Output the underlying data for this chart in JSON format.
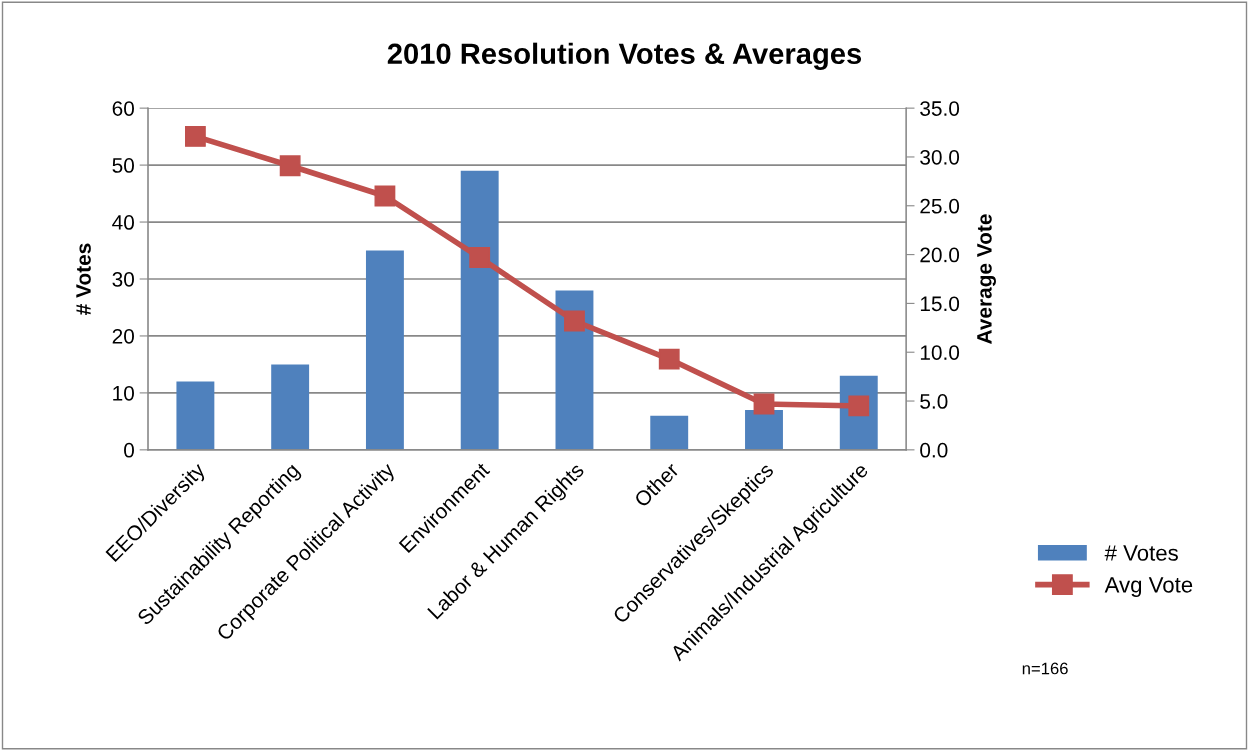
{
  "chart_data": {
    "type": "bar",
    "title": "2010 Resolution Votes & Averages",
    "ylabel": "# Votes",
    "y2label": "Average Vote",
    "categories": [
      "EEO/Diversity",
      "Sustainability Reporting",
      "Corporate Political Activity",
      "Environment",
      "Labor & Human Rights",
      "Other",
      "Conservatives/Skeptics",
      "Animals/Industrial Agriculture"
    ],
    "series": [
      {
        "name": "# Votes",
        "color": "#4f81bd",
        "values": [
          12,
          15,
          35,
          49,
          28,
          6,
          7,
          13
        ]
      },
      {
        "name": "Avg Vote",
        "type": "line",
        "axis": "y2",
        "color": "#c0504d",
        "marker": "square",
        "values": [
          32.1,
          29.1,
          26.0,
          19.7,
          13.2,
          9.3,
          4.7,
          4.5
        ]
      }
    ],
    "ylim": [
      0,
      60
    ],
    "yticks": [
      0,
      10,
      20,
      30,
      40,
      50,
      60
    ],
    "y2lim": [
      0,
      35
    ],
    "y2ticks": [
      {
        "value": 0,
        "label": "0.0"
      },
      {
        "value": 5,
        "label": "5.0"
      },
      {
        "value": 10,
        "label": "10.0"
      },
      {
        "value": 15,
        "label": "15.0"
      },
      {
        "value": 20,
        "label": "20.0"
      },
      {
        "value": 25,
        "label": "25.0"
      },
      {
        "value": 30,
        "label": "30.0"
      },
      {
        "value": 35,
        "label": "35.0"
      }
    ],
    "grid": "y",
    "legend": "right",
    "annotations": [
      "n=166"
    ]
  }
}
